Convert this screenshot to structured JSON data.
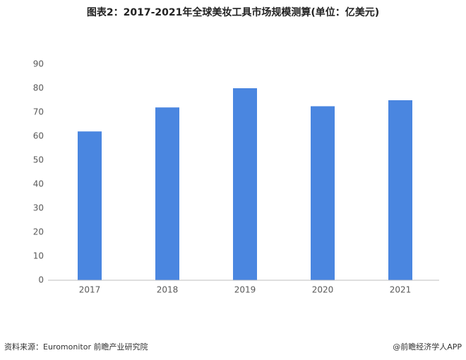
{
  "chart_data": {
    "type": "bar",
    "title": "图表2：2017-2021年全球美妆工具市场规模测算(单位：亿美元)",
    "categories": [
      "2017",
      "2018",
      "2019",
      "2020",
      "2021"
    ],
    "values": [
      62,
      72,
      80,
      72.5,
      75
    ],
    "color": "#4a86e0",
    "ylim": [
      0,
      90
    ],
    "yticks": [
      0,
      10,
      20,
      30,
      40,
      50,
      60,
      70,
      80,
      90
    ],
    "grid": false,
    "source": "资料来源：Euromonitor 前瞻产业研究院",
    "credit": "@前瞻经济学人APP"
  }
}
